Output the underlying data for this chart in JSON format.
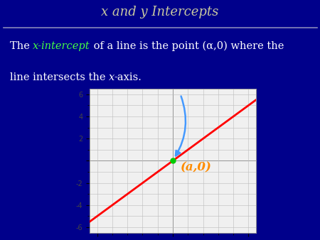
{
  "title": "x and y Intercepts",
  "title_color": "#C8C8A0",
  "bg_color": "#00008B",
  "graph_bg": "#F0F0F0",
  "line_color": "#FF0000",
  "xlim": [
    -5.5,
    5.5
  ],
  "ylim": [
    -6.5,
    6.5
  ],
  "point_x": 0,
  "point_y": 0,
  "point_color": "#00CC00",
  "label_a0": "(a,0)",
  "label_color": "#FF8C00",
  "text_color": "#FFFFFF",
  "xintercept_color": "#44FF44",
  "arrow_color": "#4499FF",
  "separator_color": "#8888BB",
  "grid_color": "#BBBBBB",
  "tick_color": "#444444",
  "tick_fontsize": 7,
  "title_fontsize": 13,
  "text_fontsize": 10.5
}
